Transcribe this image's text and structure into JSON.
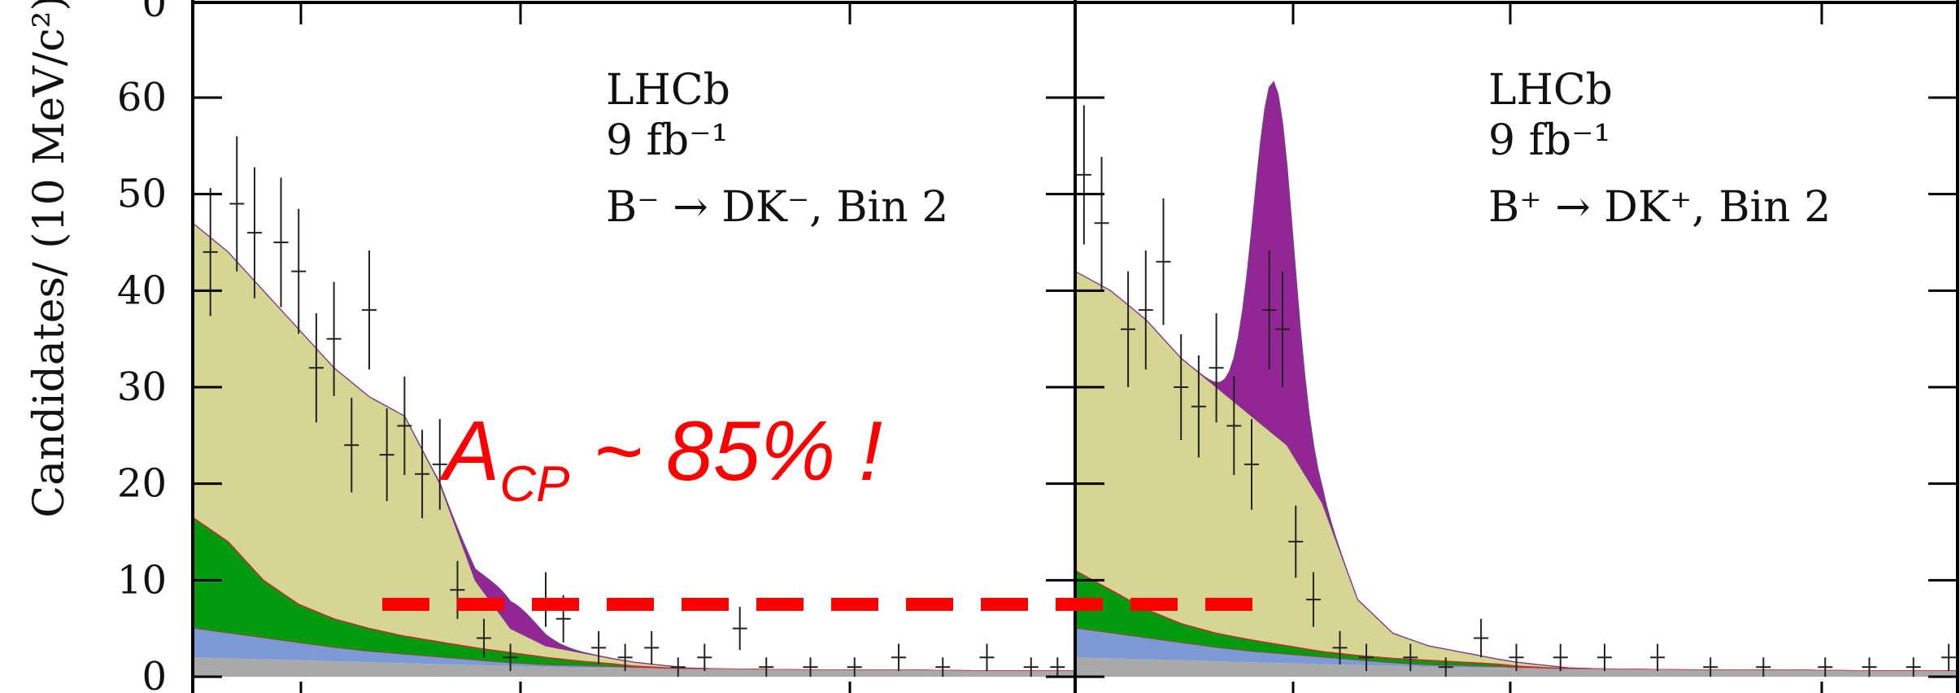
{
  "chart_data": {
    "type": "area",
    "ylabel": "Candidates/ (10 MeV/c²)",
    "ylim": [
      0,
      70
    ],
    "yticks": [
      "0",
      "10",
      "20",
      "30",
      "40",
      "50",
      "60"
    ],
    "top_tick_label": "0",
    "colors": {
      "comb": "#a9a9a9",
      "partreco_b": "#7b9ad6",
      "partreco_a": "#029b0f",
      "misid": "#d7d594",
      "signal": "#922695",
      "misid_edge": "#7a3a8a",
      "green_edge": "#cc2a2a",
      "annotation": "#ff0000"
    },
    "panels": [
      {
        "name": "B-",
        "experiment": "LHCb",
        "luminosity": "9 fb⁻¹",
        "decay": "B⁻ → DK⁻, Bin 2",
        "stacks": {
          "t": [
            0,
            0.04,
            0.08,
            0.12,
            0.16,
            0.2,
            0.24,
            0.28,
            0.32,
            0.36,
            0.4,
            0.44,
            0.48,
            0.5,
            0.52,
            0.54,
            0.56,
            0.6,
            0.7,
            0.8,
            0.9,
            1.0
          ],
          "comb": [
            2.0,
            1.9,
            1.8,
            1.7,
            1.6,
            1.5,
            1.4,
            1.3,
            1.2,
            1.1,
            1.0,
            0.9,
            0.9,
            0.9,
            0.9,
            0.8,
            0.8,
            0.8,
            0.7,
            0.7,
            0.6,
            0.6
          ],
          "pr_b_top": [
            5.0,
            4.5,
            4.0,
            3.5,
            3.0,
            2.6,
            2.3,
            2.0,
            1.7,
            1.4,
            1.2,
            1.1,
            1.0,
            0.95,
            0.9,
            0.85,
            0.8,
            0.8,
            0.7,
            0.7,
            0.6,
            0.6
          ],
          "pr_a_top": [
            16.5,
            14.0,
            10.0,
            7.5,
            6.0,
            5.0,
            4.2,
            3.6,
            3.0,
            2.5,
            2.0,
            1.6,
            1.3,
            1.1,
            1.0,
            0.9,
            0.85,
            0.8,
            0.7,
            0.7,
            0.6,
            0.6
          ],
          "misid_top": [
            47.0,
            44.0,
            40.0,
            36.0,
            32.0,
            29.0,
            27.0,
            20.0,
            10.0,
            5.0,
            3.2,
            2.5,
            1.8,
            1.5,
            1.3,
            1.1,
            0.9,
            0.8,
            0.7,
            0.7,
            0.6,
            0.6
          ],
          "signal_peak_t": 0.36,
          "signal_peak_height": 2.8,
          "signal_width": 0.03
        },
        "points": [
          [
            0.02,
            44
          ],
          [
            0.05,
            49
          ],
          [
            0.07,
            46
          ],
          [
            0.1,
            45
          ],
          [
            0.12,
            42
          ],
          [
            0.14,
            32
          ],
          [
            0.16,
            35
          ],
          [
            0.18,
            24
          ],
          [
            0.2,
            38
          ],
          [
            0.22,
            23
          ],
          [
            0.24,
            26
          ],
          [
            0.26,
            21
          ],
          [
            0.28,
            22
          ],
          [
            0.3,
            9
          ],
          [
            0.33,
            4
          ],
          [
            0.36,
            2
          ],
          [
            0.4,
            8
          ],
          [
            0.42,
            6
          ],
          [
            0.46,
            3
          ],
          [
            0.49,
            2
          ],
          [
            0.52,
            3
          ],
          [
            0.55,
            1
          ],
          [
            0.58,
            2
          ],
          [
            0.62,
            5
          ],
          [
            0.65,
            1
          ],
          [
            0.7,
            1
          ],
          [
            0.75,
            1
          ],
          [
            0.8,
            2
          ],
          [
            0.85,
            1
          ],
          [
            0.9,
            2
          ],
          [
            0.95,
            1
          ],
          [
            0.98,
            1
          ]
        ]
      },
      {
        "name": "B+",
        "experiment": "LHCb",
        "luminosity": "9 fb⁻¹",
        "decay": "B⁺ → DK⁺, Bin 2",
        "stacks": {
          "t": [
            0,
            0.04,
            0.08,
            0.12,
            0.16,
            0.2,
            0.24,
            0.28,
            0.32,
            0.36,
            0.4,
            0.44,
            0.48,
            0.5,
            0.52,
            0.54,
            0.56,
            0.6,
            0.7,
            0.8,
            0.9,
            1.0
          ],
          "comb": [
            2.0,
            1.9,
            1.8,
            1.7,
            1.6,
            1.5,
            1.4,
            1.3,
            1.2,
            1.1,
            1.0,
            0.9,
            0.9,
            0.9,
            0.9,
            0.8,
            0.8,
            0.8,
            0.7,
            0.7,
            0.6,
            0.6
          ],
          "pr_b_top": [
            5.0,
            4.5,
            4.0,
            3.5,
            3.0,
            2.6,
            2.3,
            2.0,
            1.7,
            1.4,
            1.2,
            1.1,
            1.0,
            0.95,
            0.9,
            0.85,
            0.8,
            0.8,
            0.7,
            0.7,
            0.6,
            0.6
          ],
          "pr_a_top": [
            11.0,
            9.0,
            7.0,
            5.5,
            4.5,
            3.8,
            3.2,
            2.6,
            2.2,
            1.9,
            1.7,
            1.5,
            1.3,
            1.1,
            1.0,
            0.9,
            0.85,
            0.8,
            0.7,
            0.7,
            0.6,
            0.6
          ],
          "misid_top": [
            42.0,
            40.0,
            37.0,
            33.0,
            30.0,
            27.0,
            24.0,
            18.0,
            8.0,
            4.5,
            3.2,
            2.5,
            1.8,
            1.5,
            1.3,
            1.1,
            0.9,
            0.8,
            0.7,
            0.7,
            0.6,
            0.6
          ],
          "signal_peak_t": 0.225,
          "signal_peak_height": 36.5,
          "signal_width": 0.022
        },
        "points": [
          [
            0.01,
            52
          ],
          [
            0.03,
            47
          ],
          [
            0.06,
            36
          ],
          [
            0.08,
            38
          ],
          [
            0.1,
            43
          ],
          [
            0.12,
            30
          ],
          [
            0.14,
            28
          ],
          [
            0.16,
            32
          ],
          [
            0.18,
            26
          ],
          [
            0.2,
            22
          ],
          [
            0.22,
            38
          ],
          [
            0.235,
            36
          ],
          [
            0.25,
            14
          ],
          [
            0.27,
            8
          ],
          [
            0.3,
            3
          ],
          [
            0.33,
            2
          ],
          [
            0.38,
            2
          ],
          [
            0.42,
            1
          ],
          [
            0.46,
            4
          ],
          [
            0.5,
            2
          ],
          [
            0.55,
            2
          ],
          [
            0.6,
            2
          ],
          [
            0.66,
            2
          ],
          [
            0.72,
            1
          ],
          [
            0.78,
            1
          ],
          [
            0.85,
            1
          ],
          [
            0.9,
            1
          ],
          [
            0.95,
            1
          ],
          [
            0.99,
            2
          ]
        ]
      }
    ],
    "annotation": {
      "text_main": "A",
      "text_sub": "CP",
      "text_rest": " ~ 85% !",
      "dashed_line_y": 7.5
    }
  }
}
